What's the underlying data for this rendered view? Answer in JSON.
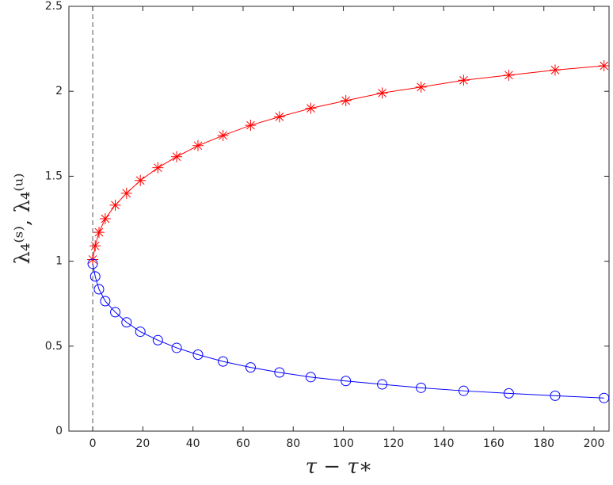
{
  "chart_data": {
    "type": "line",
    "xlabel": "τ − τ∗",
    "ylabel": "λ₄⁽ˢ⁾,  λ₄⁽ᵘ⁾",
    "x": [
      0,
      1,
      2.5,
      5,
      9,
      13.5,
      19,
      26,
      33.5,
      42,
      52,
      63,
      74.5,
      87,
      101,
      115.5,
      131,
      148,
      166,
      184.5,
      204
    ],
    "series": [
      {
        "color": "#ff0000",
        "marker": "star",
        "values": [
          1.01,
          1.09,
          1.17,
          1.25,
          1.33,
          1.4,
          1.475,
          1.55,
          1.615,
          1.68,
          1.74,
          1.8,
          1.85,
          1.9,
          1.945,
          1.99,
          2.025,
          2.065,
          2.095,
          2.125,
          2.15
        ]
      },
      {
        "color": "#0000ff",
        "marker": "circle",
        "values": [
          0.985,
          0.91,
          0.835,
          0.765,
          0.7,
          0.64,
          0.585,
          0.535,
          0.49,
          0.45,
          0.41,
          0.375,
          0.345,
          0.318,
          0.295,
          0.275,
          0.255,
          0.237,
          0.222,
          0.208,
          0.195
        ]
      }
    ],
    "vline": 0,
    "xlim": [
      -9.5,
      206
    ],
    "xticks": [
      0,
      20,
      40,
      60,
      80,
      100,
      120,
      140,
      160,
      180,
      200
    ],
    "ylim": [
      0,
      2.5
    ],
    "yticks": [
      0,
      0.5,
      1,
      1.5,
      2,
      2.5
    ],
    "grid": false
  }
}
